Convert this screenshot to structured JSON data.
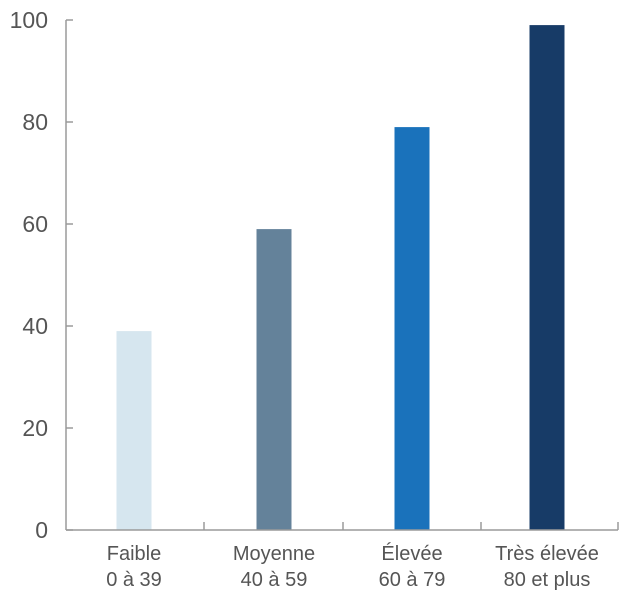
{
  "chart_data": {
    "type": "bar",
    "title": "",
    "xlabel": "",
    "ylabel": "",
    "categories": [
      [
        "Faible",
        "0 à 39"
      ],
      [
        "Moyenne",
        "40 à 59"
      ],
      [
        "Élevée",
        "60 à 79"
      ],
      [
        "Très élevée",
        "80 et plus"
      ]
    ],
    "values": [
      39,
      59,
      79,
      99
    ],
    "colors": [
      "#d6e6ef",
      "#64829a",
      "#1a72bb",
      "#173b67"
    ],
    "ylim": [
      0,
      100
    ],
    "yticks": [
      0,
      20,
      40,
      60,
      80,
      100
    ],
    "grid": false,
    "legend": "none"
  },
  "style": {
    "axis_color": "#9a9a9a",
    "text_color": "#555555"
  }
}
